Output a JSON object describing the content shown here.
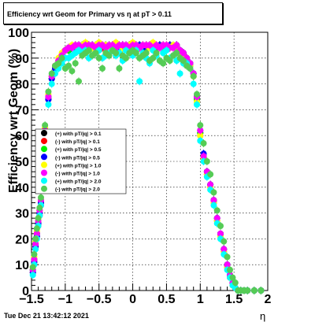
{
  "chart_data": {
    "type": "scatter",
    "title": "Efficiency wrt Geom for Primary vs  η at pT > 0.11",
    "xlabel": "η",
    "ylabel": "Efficiency wrt Geom (%)",
    "xlim": [
      -1.5,
      2.0
    ],
    "ylim": [
      0,
      100
    ],
    "xticks": [
      -1.5,
      -1,
      -0.5,
      0,
      0.5,
      1,
      1.5,
      2
    ],
    "xtick_labels": [
      "−1.5",
      "−1",
      "−0.5",
      "0",
      "0.5",
      "1",
      "1.5",
      "2"
    ],
    "yticks": [
      0,
      10,
      20,
      30,
      40,
      50,
      60,
      70,
      80,
      90,
      100
    ],
    "ytick_labels": [
      "0",
      "10",
      "20",
      "30",
      "40",
      "50",
      "60",
      "70",
      "80",
      "90",
      "100"
    ],
    "grid": true,
    "legend_position": "middle-left",
    "x": [
      -1.48,
      -1.46,
      -1.44,
      -1.42,
      -1.4,
      -1.38,
      -1.36,
      -1.34,
      -1.3,
      -1.25,
      -1.2,
      -1.15,
      -1.1,
      -1.05,
      -1.0,
      -0.95,
      -0.9,
      -0.85,
      -0.8,
      -0.75,
      -0.7,
      -0.65,
      -0.6,
      -0.55,
      -0.5,
      -0.45,
      -0.4,
      -0.35,
      -0.3,
      -0.25,
      -0.2,
      -0.15,
      -0.1,
      -0.05,
      0.0,
      0.05,
      0.1,
      0.15,
      0.2,
      0.25,
      0.3,
      0.35,
      0.4,
      0.45,
      0.5,
      0.55,
      0.6,
      0.65,
      0.7,
      0.75,
      0.8,
      0.85,
      0.9,
      0.95,
      1.0,
      1.05,
      1.1,
      1.15,
      1.2,
      1.25,
      1.3,
      1.35,
      1.4,
      1.44,
      1.48,
      1.52,
      1.56,
      1.6,
      1.65,
      1.7,
      1.8,
      1.9
    ],
    "series": [
      {
        "name": "(+) with pT/|q| > 0.1",
        "color": "#000000",
        "values": [
          8,
          12,
          18,
          22,
          26,
          30,
          34,
          45,
          62,
          75,
          82,
          86,
          89,
          91,
          93,
          93,
          94,
          94,
          95,
          94,
          95,
          95,
          95,
          94,
          95,
          95,
          94,
          95,
          95,
          95,
          94,
          95,
          95,
          95,
          94,
          95,
          95,
          95,
          94,
          95,
          95,
          94,
          95,
          95,
          94,
          95,
          94,
          95,
          93,
          92,
          90,
          88,
          84,
          75,
          61,
          52,
          46,
          41,
          35,
          28,
          22,
          16,
          10,
          6,
          3,
          1,
          0,
          0,
          0,
          0,
          0,
          0
        ]
      },
      {
        "name": "(-) with pT/|q| > 0.1",
        "color": "#ff0000",
        "values": [
          7,
          11,
          17,
          21,
          25,
          29,
          33,
          44,
          61,
          74,
          82,
          86,
          89,
          91,
          93,
          94,
          94,
          95,
          95,
          94,
          95,
          95,
          94,
          95,
          95,
          94,
          95,
          95,
          95,
          94,
          95,
          95,
          94,
          95,
          95,
          95,
          94,
          95,
          95,
          95,
          94,
          95,
          95,
          94,
          95,
          95,
          94,
          95,
          93,
          92,
          90,
          87,
          83,
          74,
          60,
          51,
          45,
          40,
          34,
          27,
          21,
          15,
          9,
          5,
          2,
          1,
          0,
          0,
          0,
          0,
          0,
          0
        ]
      },
      {
        "name": "(+) with pT/|q| > 0.5",
        "color": "#00ee00",
        "values": [
          8,
          12,
          18,
          22,
          27,
          31,
          35,
          46,
          63,
          75,
          83,
          87,
          89,
          91,
          93,
          93,
          94,
          95,
          94,
          95,
          95,
          94,
          95,
          95,
          94,
          95,
          95,
          95,
          94,
          95,
          95,
          94,
          95,
          95,
          95,
          94,
          95,
          95,
          94,
          95,
          95,
          94,
          95,
          94,
          95,
          94,
          95,
          94,
          93,
          91,
          89,
          87,
          83,
          74,
          61,
          52,
          46,
          41,
          35,
          28,
          22,
          16,
          10,
          6,
          3,
          1,
          0,
          0,
          0,
          0,
          0,
          0
        ]
      },
      {
        "name": "(-) with pT/|q| > 0.5",
        "color": "#0000ff",
        "values": [
          7,
          11,
          17,
          21,
          26,
          30,
          34,
          45,
          62,
          74,
          82,
          86,
          88,
          91,
          93,
          94,
          94,
          94,
          95,
          95,
          94,
          95,
          95,
          94,
          95,
          95,
          95,
          94,
          95,
          95,
          94,
          95,
          95,
          95,
          94,
          95,
          95,
          94,
          95,
          95,
          95,
          94,
          95,
          95,
          94,
          95,
          94,
          95,
          93,
          92,
          90,
          88,
          84,
          75,
          62,
          53,
          46,
          41,
          35,
          28,
          22,
          16,
          10,
          6,
          3,
          1,
          0,
          0,
          0,
          0,
          0,
          0
        ]
      },
      {
        "name": "(+) with pT/|q| > 1.0",
        "color": "#ffff00",
        "values": [
          9,
          13,
          19,
          23,
          27,
          31,
          35,
          46,
          63,
          76,
          83,
          87,
          90,
          92,
          93,
          94,
          95,
          95,
          94,
          95,
          96,
          95,
          94,
          95,
          96,
          95,
          95,
          94,
          95,
          96,
          95,
          94,
          95,
          95,
          96,
          95,
          94,
          95,
          95,
          94,
          96,
          95,
          94,
          95,
          95,
          94,
          95,
          94,
          92,
          91,
          89,
          87,
          83,
          73,
          60,
          51,
          45,
          40,
          34,
          27,
          21,
          15,
          9,
          5,
          2,
          1,
          0,
          0,
          0,
          0,
          0,
          0
        ]
      },
      {
        "name": "(-) with pT/|q| > 1.0",
        "color": "#ff00ff",
        "values": [
          8,
          12,
          18,
          22,
          27,
          31,
          35,
          45,
          62,
          75,
          83,
          87,
          89,
          91,
          93,
          94,
          94,
          95,
          95,
          94,
          95,
          95,
          95,
          94,
          95,
          95,
          94,
          95,
          95,
          94,
          95,
          95,
          95,
          94,
          95,
          95,
          94,
          95,
          95,
          95,
          94,
          95,
          94,
          95,
          95,
          94,
          94,
          95,
          93,
          92,
          90,
          88,
          84,
          75,
          62,
          52,
          46,
          41,
          35,
          28,
          22,
          16,
          10,
          6,
          3,
          1,
          0,
          0,
          0,
          0,
          0,
          0
        ]
      },
      {
        "name": "(+) with pT/|q| > 2.0",
        "color": "#00ffff",
        "values": [
          6,
          10,
          16,
          20,
          25,
          29,
          33,
          44,
          58,
          72,
          80,
          84,
          86,
          88,
          90,
          90,
          91,
          92,
          93,
          92,
          93,
          90,
          91,
          92,
          93,
          90,
          91,
          92,
          93,
          91,
          92,
          89,
          93,
          92,
          91,
          93,
          81,
          92,
          90,
          88,
          93,
          91,
          89,
          92,
          93,
          90,
          91,
          89,
          84,
          88,
          88,
          86,
          80,
          72,
          58,
          50,
          44,
          39,
          33,
          26,
          20,
          14,
          8,
          5,
          2,
          1,
          0,
          0,
          0,
          0,
          0,
          0
        ]
      },
      {
        "name": "(-) with pT/|q| > 2.0",
        "color": "#55cc55",
        "values": [
          9,
          14,
          20,
          24,
          28,
          32,
          36,
          46,
          64,
          77,
          84,
          87,
          88,
          90,
          86,
          87,
          85,
          88,
          81,
          91,
          92,
          93,
          91,
          92,
          90,
          86,
          92,
          91,
          93,
          92,
          86,
          91,
          90,
          92,
          93,
          92,
          90,
          91,
          92,
          89,
          90,
          92,
          89,
          88,
          90,
          89,
          91,
          92,
          90,
          89,
          87,
          86,
          83,
          76,
          64,
          57,
          50,
          45,
          38,
          31,
          25,
          19,
          13,
          8,
          5,
          3,
          0,
          0,
          0,
          0,
          0,
          0
        ]
      }
    ]
  },
  "timestamp": "Tue Dec 21 13:42:12 2021"
}
